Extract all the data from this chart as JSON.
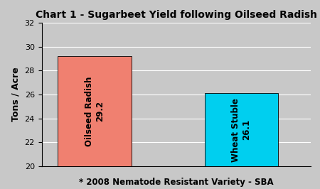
{
  "title": "Chart 1 - Sugarbeet Yield following Oilseed Radish",
  "categories": [
    "Oilseed Radish",
    "Wheat Stuble"
  ],
  "values": [
    29.2,
    26.1
  ],
  "bar_colors": [
    "#F08070",
    "#00CFEF"
  ],
  "bar_labels": [
    "Oilseed Radish\n29.2",
    "Wheat Stuble\n26.1"
  ],
  "ylabel": "Tons / Acre",
  "footnote": "* 2008 Nematode Resistant Variety - SBA",
  "ylim": [
    20,
    32
  ],
  "yticks": [
    20,
    22,
    24,
    26,
    28,
    30,
    32
  ],
  "plot_bg_color": "#C8C8C8",
  "fig_bg_color": "#C8C8C8",
  "bar_positions": [
    1.0,
    2.8
  ],
  "bar_width": 0.9,
  "title_fontsize": 10,
  "label_fontsize": 8.5,
  "ylabel_fontsize": 9,
  "footnote_fontsize": 8.5
}
